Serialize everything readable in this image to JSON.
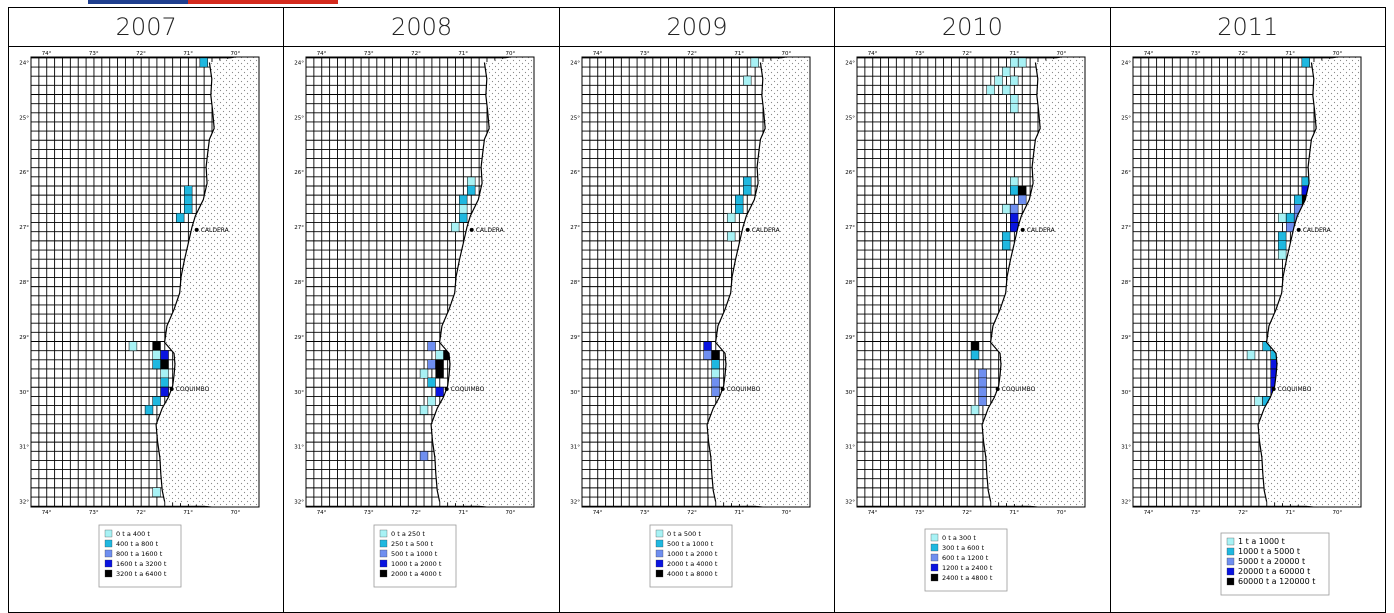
{
  "header_flag": {
    "colors": [
      "#1f3f8f",
      "#d52b1e"
    ]
  },
  "map_common": {
    "lon_ticks": [
      "74°",
      "73°",
      "72°",
      "71°",
      "70°"
    ],
    "lat_ticks": [
      "24°",
      "25°",
      "26°",
      "27°",
      "28°",
      "29°",
      "30°",
      "31°",
      "32°"
    ],
    "cities": [
      {
        "name": "CALDERA",
        "lat": 27.05,
        "lon": 70.82
      },
      {
        "name": "COQUIMBO",
        "lat": 29.95,
        "lon": 71.35
      }
    ],
    "grid_step_deg": 0.1667,
    "land_color": "#ffffff",
    "land_dots": "#888888"
  },
  "panels": [
    {
      "year": "2007",
      "legend": [
        {
          "label": "0 t  a  400 t",
          "color": "#a8f2f5"
        },
        {
          "label": "400 t  a  800 t",
          "color": "#1fb8e0"
        },
        {
          "label": "800 t  a  1600 t",
          "color": "#6f8ff0"
        },
        {
          "label": "1600 t  a  3200 t",
          "color": "#0a14e0"
        },
        {
          "label": "3200 t  a  6400 t",
          "color": "#000000"
        }
      ],
      "catches": [
        {
          "lat": 24.0,
          "lon": 70.67,
          "level": 1
        },
        {
          "lat": 26.33,
          "lon": 71.0,
          "level": 1
        },
        {
          "lat": 26.5,
          "lon": 71.0,
          "level": 1
        },
        {
          "lat": 26.67,
          "lon": 71.0,
          "level": 1
        },
        {
          "lat": 26.83,
          "lon": 71.17,
          "level": 1
        },
        {
          "lat": 29.17,
          "lon": 72.17,
          "level": 0
        },
        {
          "lat": 29.17,
          "lon": 71.67,
          "level": 4
        },
        {
          "lat": 29.33,
          "lon": 71.5,
          "level": 3
        },
        {
          "lat": 29.33,
          "lon": 71.67,
          "level": 0
        },
        {
          "lat": 29.5,
          "lon": 71.5,
          "level": 4
        },
        {
          "lat": 29.5,
          "lon": 71.67,
          "level": 1
        },
        {
          "lat": 29.67,
          "lon": 71.5,
          "level": 0
        },
        {
          "lat": 29.83,
          "lon": 71.5,
          "level": 1
        },
        {
          "lat": 30.0,
          "lon": 71.5,
          "level": 2
        },
        {
          "lat": 30.0,
          "lon": 71.5,
          "level": 3
        },
        {
          "lat": 30.17,
          "lon": 71.67,
          "level": 1
        },
        {
          "lat": 30.33,
          "lon": 71.83,
          "level": 1
        },
        {
          "lat": 31.83,
          "lon": 71.67,
          "level": 0
        }
      ]
    },
    {
      "year": "2008",
      "legend": [
        {
          "label": "0 t  a  250 t",
          "color": "#a8f2f5"
        },
        {
          "label": "250 t  a  500 t",
          "color": "#1fb8e0"
        },
        {
          "label": "500 t  a  1000 t",
          "color": "#6f8ff0"
        },
        {
          "label": "1000 t  a  2000 t",
          "color": "#0a14e0"
        },
        {
          "label": "2000 t  a  4000 t",
          "color": "#000000"
        }
      ],
      "catches": [
        {
          "lat": 26.17,
          "lon": 70.83,
          "level": 0
        },
        {
          "lat": 26.33,
          "lon": 70.83,
          "level": 1
        },
        {
          "lat": 26.5,
          "lon": 71.0,
          "level": 1
        },
        {
          "lat": 26.67,
          "lon": 71.0,
          "level": 0
        },
        {
          "lat": 26.83,
          "lon": 71.0,
          "level": 1
        },
        {
          "lat": 27.0,
          "lon": 71.17,
          "level": 0
        },
        {
          "lat": 29.17,
          "lon": 71.67,
          "level": 2
        },
        {
          "lat": 29.33,
          "lon": 71.5,
          "level": 0
        },
        {
          "lat": 29.33,
          "lon": 71.33,
          "level": 4
        },
        {
          "lat": 29.5,
          "lon": 71.67,
          "level": 2
        },
        {
          "lat": 29.5,
          "lon": 71.5,
          "level": 4
        },
        {
          "lat": 29.67,
          "lon": 71.83,
          "level": 0
        },
        {
          "lat": 29.67,
          "lon": 71.5,
          "level": 4
        },
        {
          "lat": 29.83,
          "lon": 71.67,
          "level": 1
        },
        {
          "lat": 30.0,
          "lon": 71.5,
          "level": 3
        },
        {
          "lat": 30.17,
          "lon": 71.67,
          "level": 0
        },
        {
          "lat": 30.33,
          "lon": 71.83,
          "level": 0
        },
        {
          "lat": 31.17,
          "lon": 71.83,
          "level": 2
        }
      ]
    },
    {
      "year": "2009",
      "legend": [
        {
          "label": "0 t  a  500 t",
          "color": "#a8f2f5"
        },
        {
          "label": "500 t  a  1000 t",
          "color": "#1fb8e0"
        },
        {
          "label": "1000 t  a  2000 t",
          "color": "#6f8ff0"
        },
        {
          "label": "2000 t  a  4000 t",
          "color": "#0a14e0"
        },
        {
          "label": "4000 t  a  8000 t",
          "color": "#000000"
        }
      ],
      "catches": [
        {
          "lat": 24.0,
          "lon": 70.67,
          "level": 0
        },
        {
          "lat": 24.33,
          "lon": 70.83,
          "level": 0
        },
        {
          "lat": 26.17,
          "lon": 70.83,
          "level": 1
        },
        {
          "lat": 26.33,
          "lon": 70.83,
          "level": 1
        },
        {
          "lat": 26.5,
          "lon": 71.0,
          "level": 1
        },
        {
          "lat": 26.67,
          "lon": 71.0,
          "level": 1
        },
        {
          "lat": 26.83,
          "lon": 71.17,
          "level": 0
        },
        {
          "lat": 27.17,
          "lon": 71.17,
          "level": 0
        },
        {
          "lat": 29.17,
          "lon": 71.67,
          "level": 3
        },
        {
          "lat": 29.33,
          "lon": 71.5,
          "level": 4
        },
        {
          "lat": 29.33,
          "lon": 71.67,
          "level": 2
        },
        {
          "lat": 29.5,
          "lon": 71.5,
          "level": 1
        },
        {
          "lat": 29.67,
          "lon": 71.5,
          "level": 0
        },
        {
          "lat": 29.83,
          "lon": 71.5,
          "level": 2
        },
        {
          "lat": 30.0,
          "lon": 71.5,
          "level": 2
        }
      ]
    },
    {
      "year": "2010",
      "legend": [
        {
          "label": "0 t  a  300 t",
          "color": "#a8f2f5"
        },
        {
          "label": "300 t  a  600 t",
          "color": "#1fb8e0"
        },
        {
          "label": "600 t  a  1200 t",
          "color": "#6f8ff0"
        },
        {
          "label": "1200 t  a  2400 t",
          "color": "#0a14e0"
        },
        {
          "label": "2400 t  a  4800 t",
          "color": "#000000"
        }
      ],
      "catches": [
        {
          "lat": 24.0,
          "lon": 71.0,
          "level": 0
        },
        {
          "lat": 24.0,
          "lon": 70.83,
          "level": 0
        },
        {
          "lat": 24.17,
          "lon": 71.17,
          "level": 0
        },
        {
          "lat": 24.33,
          "lon": 71.33,
          "level": 0
        },
        {
          "lat": 24.33,
          "lon": 71.0,
          "level": 0
        },
        {
          "lat": 24.5,
          "lon": 71.5,
          "level": 0
        },
        {
          "lat": 24.5,
          "lon": 71.17,
          "level": 0
        },
        {
          "lat": 24.67,
          "lon": 71.0,
          "level": 0
        },
        {
          "lat": 24.83,
          "lon": 71.0,
          "level": 0
        },
        {
          "lat": 26.17,
          "lon": 71.0,
          "level": 0
        },
        {
          "lat": 26.33,
          "lon": 70.83,
          "level": 4
        },
        {
          "lat": 26.33,
          "lon": 71.0,
          "level": 1
        },
        {
          "lat": 26.5,
          "lon": 70.83,
          "level": 2
        },
        {
          "lat": 26.67,
          "lon": 71.0,
          "level": 2
        },
        {
          "lat": 26.67,
          "lon": 71.17,
          "level": 0
        },
        {
          "lat": 26.83,
          "lon": 71.0,
          "level": 3
        },
        {
          "lat": 27.0,
          "lon": 71.0,
          "level": 3
        },
        {
          "lat": 27.17,
          "lon": 71.17,
          "level": 1
        },
        {
          "lat": 27.33,
          "lon": 71.17,
          "level": 1
        },
        {
          "lat": 29.17,
          "lon": 71.83,
          "level": 4
        },
        {
          "lat": 29.33,
          "lon": 71.83,
          "level": 1
        },
        {
          "lat": 29.67,
          "lon": 71.67,
          "level": 2
        },
        {
          "lat": 29.83,
          "lon": 71.67,
          "level": 2
        },
        {
          "lat": 30.0,
          "lon": 71.67,
          "level": 2
        },
        {
          "lat": 30.17,
          "lon": 71.67,
          "level": 2
        },
        {
          "lat": 30.33,
          "lon": 71.83,
          "level": 0
        }
      ]
    },
    {
      "year": "2011",
      "legend": [
        {
          "label": "1 t  a  1000 t",
          "color": "#a8f2f5"
        },
        {
          "label": "1000 t  a  5000 t",
          "color": "#1fb8e0"
        },
        {
          "label": "5000 t  a  20000 t",
          "color": "#6f8ff0"
        },
        {
          "label": "20000 t  a  60000 t",
          "color": "#0a14e0"
        },
        {
          "label": "60000 t  a  120000 t",
          "color": "#000000"
        }
      ],
      "catches": [
        {
          "lat": 24.0,
          "lon": 70.67,
          "level": 1
        },
        {
          "lat": 26.17,
          "lon": 70.67,
          "level": 1
        },
        {
          "lat": 26.33,
          "lon": 70.67,
          "level": 3
        },
        {
          "lat": 26.5,
          "lon": 70.67,
          "level": 4
        },
        {
          "lat": 26.5,
          "lon": 70.83,
          "level": 1
        },
        {
          "lat": 26.67,
          "lon": 70.83,
          "level": 2
        },
        {
          "lat": 26.83,
          "lon": 71.0,
          "level": 1
        },
        {
          "lat": 26.83,
          "lon": 70.83,
          "level": 2
        },
        {
          "lat": 26.83,
          "lon": 71.17,
          "level": 0
        },
        {
          "lat": 27.0,
          "lon": 71.0,
          "level": 2
        },
        {
          "lat": 27.17,
          "lon": 71.17,
          "level": 1
        },
        {
          "lat": 27.33,
          "lon": 71.17,
          "level": 1
        },
        {
          "lat": 27.5,
          "lon": 71.17,
          "level": 0
        },
        {
          "lat": 29.17,
          "lon": 71.5,
          "level": 1
        },
        {
          "lat": 29.33,
          "lon": 71.33,
          "level": 1
        },
        {
          "lat": 29.33,
          "lon": 71.83,
          "level": 0
        },
        {
          "lat": 29.5,
          "lon": 71.33,
          "level": 3
        },
        {
          "lat": 29.67,
          "lon": 71.33,
          "level": 3
        },
        {
          "lat": 29.83,
          "lon": 71.33,
          "level": 3
        },
        {
          "lat": 30.0,
          "lon": 71.33,
          "level": 3
        },
        {
          "lat": 30.17,
          "lon": 71.5,
          "level": 1
        },
        {
          "lat": 30.17,
          "lon": 71.67,
          "level": 0
        }
      ]
    }
  ]
}
